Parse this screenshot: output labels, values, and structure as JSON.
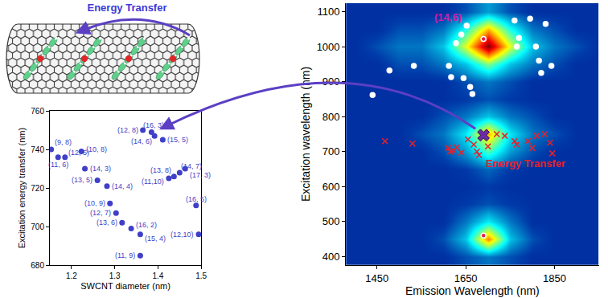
{
  "diagram": {
    "label": "Energy Transfer",
    "color": "#3b3bd6"
  },
  "chart_data": [
    {
      "type": "scatter",
      "x_label": "SWCNT diameter (nm)",
      "y_label": "Excitation energy transfer (nm)",
      "xlim": [
        1.15,
        1.5
      ],
      "xticks": [
        1.2,
        1.3,
        1.4,
        1.5
      ],
      "ylim": [
        680,
        760
      ],
      "yticks": [
        680,
        700,
        720,
        740,
        760
      ],
      "grid": false,
      "series": [
        {
          "color": "#3f3fc8",
          "marker": "circle",
          "point_labels": [
            "(9, 8)",
            "(11, 6)",
            "(12, 5)",
            "(10, 8)",
            "(14, 3)",
            "(13, 5)",
            "(14, 4)",
            "(10, 9)",
            "(12, 7)",
            "(13, 6)",
            "(16, 2)",
            "(15, 4)",
            "(11, 9)",
            "(12, 8)",
            "(16, 3)",
            "(14, 6)",
            "(15, 5)",
            "(11,10)",
            "(13, 8)",
            "(14, 7)",
            "(17, 3)",
            "(16, 5)",
            "(12,10)"
          ],
          "x": [
            1.153,
            1.169,
            1.185,
            1.223,
            1.231,
            1.26,
            1.282,
            1.289,
            1.303,
            1.317,
            1.338,
            1.359,
            1.359,
            1.365,
            1.385,
            1.392,
            1.411,
            1.425,
            1.437,
            1.45,
            1.463,
            1.488,
            1.494
          ],
          "values": [
            740,
            736,
            736,
            739,
            730,
            724,
            721,
            712,
            707,
            702,
            699,
            696,
            685,
            750,
            749,
            747,
            745,
            725,
            726,
            728,
            730,
            711,
            696
          ]
        }
      ]
    },
    {
      "type": "heatmap",
      "x_label": "Emission Wavelength (nm)",
      "y_label": "Excitation wavelength (nm)",
      "xlim": [
        1380,
        1950
      ],
      "xticks": [
        1450,
        1650,
        1850
      ],
      "ylim": [
        375,
        1125
      ],
      "yticks": [
        400,
        500,
        600,
        700,
        800,
        900,
        1000,
        1100
      ],
      "x": [
        1400,
        1450,
        1500,
        1550,
        1600,
        1650,
        1700,
        1750,
        1800,
        1850,
        1900,
        1950
      ],
      "y": [
        400,
        450,
        500,
        550,
        600,
        650,
        700,
        750,
        800,
        850,
        900,
        950,
        1000,
        1050,
        1100
      ],
      "z": [
        [
          1,
          1,
          1,
          1,
          1,
          1.5,
          2,
          1.5,
          1,
          1,
          1,
          1
        ],
        [
          1,
          1,
          1,
          1,
          1.5,
          3,
          7.5,
          3,
          1.5,
          1,
          1,
          1
        ],
        [
          1,
          1,
          1,
          1,
          1,
          2,
          3.5,
          2,
          1,
          1,
          1,
          1
        ],
        [
          1,
          1,
          1,
          1,
          1,
          1.2,
          1.5,
          1.2,
          1,
          1,
          1,
          1
        ],
        [
          1,
          1,
          1,
          1,
          1,
          1,
          1.2,
          1,
          1,
          1,
          1,
          1
        ],
        [
          1,
          1,
          1,
          1,
          1,
          1.2,
          1.8,
          1.2,
          1,
          1,
          1,
          1
        ],
        [
          1,
          1,
          1,
          1,
          1.5,
          2.5,
          4.5,
          2.5,
          1.5,
          1,
          1,
          1
        ],
        [
          1,
          1,
          1,
          1.5,
          2,
          3.5,
          7,
          3.5,
          2,
          1.5,
          1,
          1
        ],
        [
          1,
          1,
          1,
          1,
          1.5,
          2,
          3,
          2,
          1.5,
          1,
          1,
          1
        ],
        [
          1,
          1,
          1,
          1,
          1,
          1.2,
          1.5,
          1.2,
          1,
          1,
          1,
          1
        ],
        [
          1,
          1,
          1,
          1,
          1,
          1.5,
          2,
          1.5,
          1,
          1,
          1,
          1
        ],
        [
          1,
          1,
          1.5,
          1.5,
          2,
          3,
          5,
          3,
          2,
          1.5,
          1,
          1
        ],
        [
          1,
          1.5,
          2,
          2,
          3,
          6,
          10,
          6,
          3,
          2,
          1.5,
          1
        ],
        [
          1,
          1,
          1.5,
          1.5,
          2,
          4,
          7,
          4,
          2,
          1.5,
          1,
          1
        ],
        [
          1,
          1,
          1,
          1,
          1,
          1.5,
          2.5,
          1.5,
          1,
          1,
          1,
          1
        ]
      ],
      "zlim": [
        0,
        10
      ],
      "series": [
        {
          "type": "scatter",
          "marker": "circle",
          "color": "#ffffff",
          "x": [
            1440,
            1478,
            1533,
            1612,
            1617,
            1628,
            1640,
            1645,
            1660,
            1665,
            1652,
            1760,
            1765,
            1770,
            1795,
            1808,
            1815,
            1820,
            1830,
            1843
          ],
          "values": [
            862,
            932,
            945,
            945,
            913,
            1010,
            1035,
            910,
            885,
            865,
            1060,
            1075,
            1000,
            1025,
            1080,
            1000,
            960,
            925,
            1065,
            945
          ]
        },
        {
          "type": "scatter",
          "marker": "x",
          "color": "#e8202a",
          "x": [
            1468,
            1530,
            1610,
            1615,
            1622,
            1630,
            1640,
            1655,
            1668,
            1675,
            1680,
            1700,
            1720,
            1738,
            1760,
            1765,
            1790,
            1800,
            1810,
            1828,
            1840,
            1845
          ],
          "values": [
            730,
            723,
            710,
            700,
            703,
            712,
            697,
            735,
            720,
            700,
            690,
            715,
            750,
            745,
            730,
            720,
            730,
            710,
            745,
            750,
            725,
            695
          ]
        },
        {
          "type": "scatter",
          "marker": "circle",
          "color": "#e0204a",
          "x": [
            1690,
            1690
          ],
          "values": [
            1022,
            460
          ]
        },
        {
          "type": "scatter",
          "marker": "x-bold",
          "color": "#6a2ca0",
          "x": [
            1690
          ],
          "values": [
            747
          ]
        }
      ],
      "annotations": [
        {
          "text": "(14,6)",
          "x": 1610,
          "y": 1085,
          "color": "#d61aa8"
        },
        {
          "text": "Energy Transfer",
          "x": 1785,
          "y": 665,
          "color": "#e8202a"
        }
      ]
    }
  ]
}
